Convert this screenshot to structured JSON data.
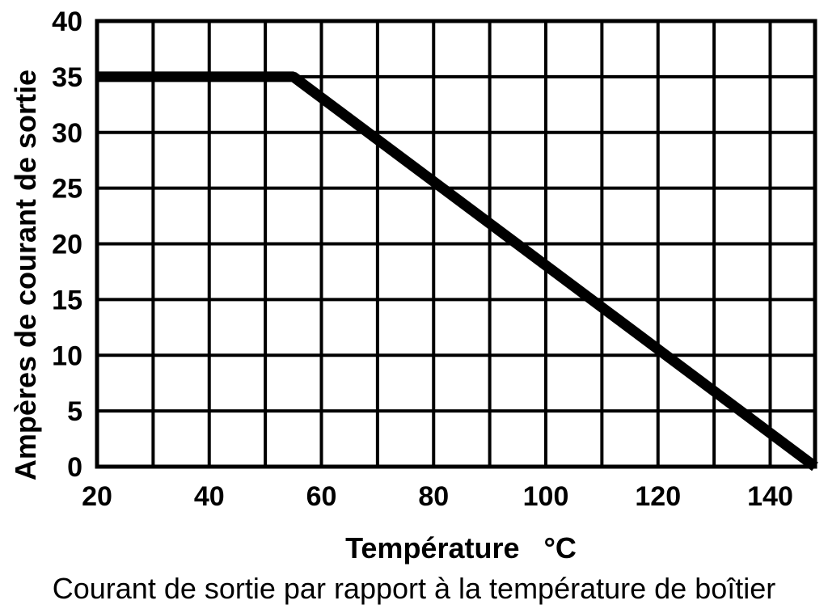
{
  "chart_data": {
    "type": "line",
    "title": "Courant de sortie par rapport à la température de boîtier",
    "xlabel": "Température   °C",
    "ylabel": "Ampères de courant de sortie",
    "xlim": [
      20,
      148
    ],
    "ylim": [
      0,
      40
    ],
    "x_ticks": [
      20,
      40,
      60,
      80,
      100,
      120,
      140
    ],
    "y_ticks": [
      0,
      5,
      10,
      15,
      20,
      25,
      30,
      35,
      40
    ],
    "x_grid_step": 10,
    "y_grid_step": 5,
    "grid": true,
    "legend": "none",
    "series": [
      {
        "x": [
          20,
          55,
          148
        ],
        "y": [
          35,
          35,
          0
        ]
      }
    ],
    "colors": {
      "line": "#000000",
      "grid": "#000000",
      "background": "#ffffff"
    }
  }
}
